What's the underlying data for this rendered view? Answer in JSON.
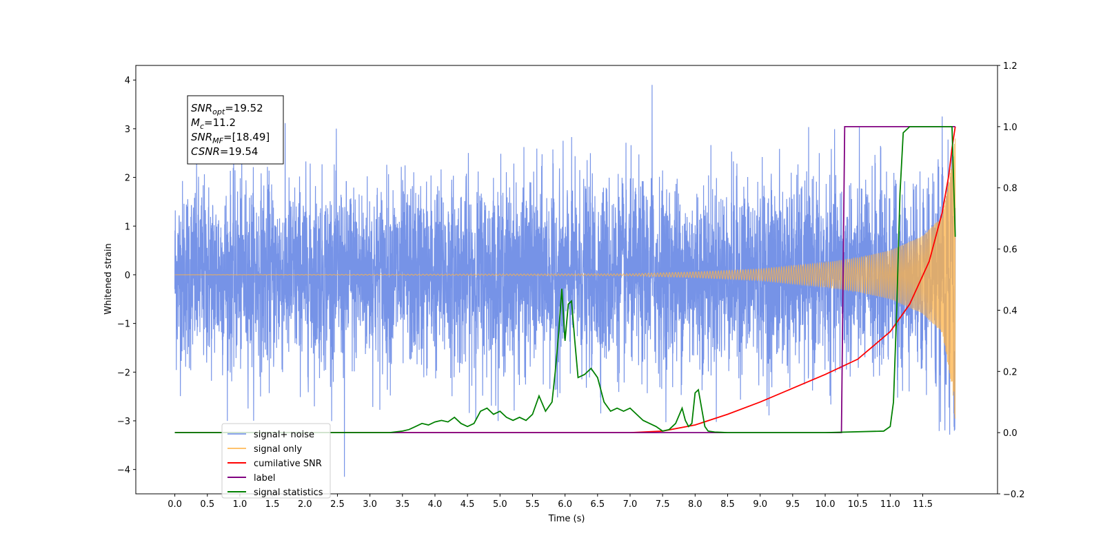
{
  "chart_data": {
    "type": "line",
    "title": "",
    "xlabel": "Time (s)",
    "ylabel_left": "Whitened strain",
    "ylabel_right": "",
    "xlim": [
      -0.6,
      12.65
    ],
    "ylim_left": [
      -4.5,
      4.3
    ],
    "ylim_right": [
      -0.2,
      1.2
    ],
    "x_ticks": [
      "0.0",
      "0.5",
      "1.0",
      "1.5",
      "2.0",
      "2.5",
      "3.0",
      "3.5",
      "4.0",
      "4.5",
      "5.0",
      "5.5",
      "6.0",
      "6.5",
      "7.0",
      "7.5",
      "8.0",
      "8.5",
      "9.0",
      "9.5",
      "10.0",
      "10.5",
      "11.0",
      "11.5"
    ],
    "y_ticks_left": [
      "4",
      "3",
      "2",
      "1",
      "0",
      "−1",
      "−2",
      "−3",
      "−4"
    ],
    "y_ticks_right": [
      "1.2",
      "1.0",
      "0.8",
      "0.6",
      "0.4",
      "0.2",
      "0.0",
      "−0.2"
    ],
    "grid": false,
    "legend_position": "lower-left",
    "annotation": {
      "lines": [
        {
          "main": "SNR",
          "sub": "opt",
          "rest": "=19.52"
        },
        {
          "main": "M",
          "sub": "c",
          "rest": "=11.2"
        },
        {
          "main": "SNR",
          "sub": "MF",
          "rest": "=[18.49]"
        },
        {
          "main": "CSNR",
          "sub": "",
          "rest": "=19.54"
        }
      ]
    },
    "series": [
      {
        "name": "signal+ noise",
        "axis": "left",
        "color": "#6f8de6",
        "kind": "noise",
        "x_range": [
          0.0,
          12.0
        ],
        "noise_std": 0.95,
        "noise_max": 3.9,
        "noise_min": -4.15,
        "note_values_shown": "dense whitened strain, roughly within [-2.5, 2.8]"
      },
      {
        "name": "signal only",
        "axis": "left",
        "color": "#ffb347",
        "kind": "chirp",
        "x_range": [
          0.0,
          12.0
        ],
        "envelope": [
          [
            0.0,
            0.0
          ],
          [
            7.0,
            0.02
          ],
          [
            8.0,
            0.06
          ],
          [
            9.0,
            0.12
          ],
          [
            10.0,
            0.25
          ],
          [
            10.5,
            0.35
          ],
          [
            11.0,
            0.5
          ],
          [
            11.5,
            0.8
          ],
          [
            11.8,
            1.2
          ],
          [
            11.95,
            2.3
          ],
          [
            12.0,
            3.0
          ]
        ]
      },
      {
        "name": "cumilative SNR",
        "axis": "right",
        "color": "#ff0000",
        "x": [
          0.0,
          7.0,
          7.5,
          8.0,
          8.5,
          9.0,
          9.5,
          10.0,
          10.5,
          11.0,
          11.3,
          11.6,
          11.8,
          11.9,
          11.95,
          12.0
        ],
        "y": [
          0.0,
          0.0,
          0.005,
          0.025,
          0.06,
          0.1,
          0.145,
          0.19,
          0.24,
          0.33,
          0.42,
          0.56,
          0.72,
          0.84,
          0.93,
          1.0
        ]
      },
      {
        "name": "label",
        "axis": "right",
        "color": "#800080",
        "x": [
          0.0,
          10.25,
          10.3,
          12.0
        ],
        "y": [
          0.0,
          0.0,
          1.0,
          1.0
        ]
      },
      {
        "name": "signal statistics",
        "axis": "right",
        "color": "#008000",
        "x": [
          0.0,
          3.3,
          3.5,
          3.6,
          3.7,
          3.8,
          3.9,
          4.0,
          4.1,
          4.2,
          4.3,
          4.4,
          4.5,
          4.6,
          4.7,
          4.8,
          4.9,
          5.0,
          5.1,
          5.2,
          5.3,
          5.4,
          5.5,
          5.6,
          5.7,
          5.8,
          5.85,
          5.9,
          5.95,
          6.0,
          6.05,
          6.1,
          6.15,
          6.2,
          6.3,
          6.4,
          6.5,
          6.6,
          6.7,
          6.8,
          6.9,
          7.0,
          7.1,
          7.2,
          7.3,
          7.4,
          7.5,
          7.6,
          7.7,
          7.8,
          7.85,
          7.9,
          7.95,
          8.0,
          8.05,
          8.1,
          8.15,
          8.2,
          8.3,
          8.4,
          8.5,
          9.0,
          10.0,
          10.9,
          11.0,
          11.05,
          11.1,
          11.15,
          11.2,
          11.3,
          11.5,
          11.95,
          12.0
        ],
        "y": [
          0.0,
          0.0,
          0.005,
          0.01,
          0.02,
          0.03,
          0.025,
          0.035,
          0.04,
          0.035,
          0.05,
          0.03,
          0.02,
          0.03,
          0.07,
          0.08,
          0.06,
          0.07,
          0.05,
          0.04,
          0.05,
          0.04,
          0.06,
          0.12,
          0.07,
          0.1,
          0.2,
          0.32,
          0.47,
          0.3,
          0.42,
          0.43,
          0.3,
          0.18,
          0.19,
          0.21,
          0.18,
          0.1,
          0.07,
          0.08,
          0.07,
          0.08,
          0.06,
          0.04,
          0.03,
          0.02,
          0.005,
          0.01,
          0.03,
          0.08,
          0.04,
          0.02,
          0.03,
          0.13,
          0.14,
          0.08,
          0.02,
          0.005,
          0.002,
          0.001,
          0.0,
          0.0,
          0.0,
          0.005,
          0.02,
          0.1,
          0.4,
          0.78,
          0.98,
          1.0,
          1.0,
          1.0,
          0.64
        ]
      }
    ]
  }
}
